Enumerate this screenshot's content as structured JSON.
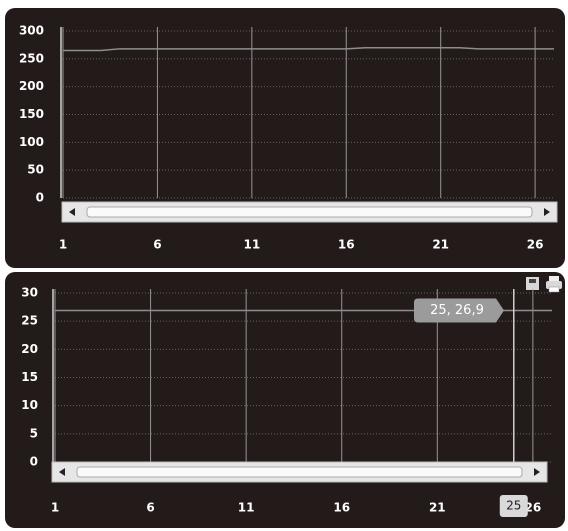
{
  "chart_data": [
    {
      "type": "line",
      "color": "#8e8e8e",
      "x": [
        1,
        2,
        3,
        4,
        5,
        6,
        7,
        8,
        9,
        10,
        11,
        12,
        13,
        14,
        15,
        16,
        17,
        18,
        19,
        20,
        21,
        22,
        23,
        24,
        25,
        26,
        27
      ],
      "values": [
        265,
        265,
        265,
        268,
        268,
        268,
        268,
        268,
        268,
        268,
        268,
        268,
        268,
        268,
        268,
        268,
        270,
        270,
        270,
        270,
        270,
        270,
        268,
        268,
        268,
        268,
        268
      ],
      "xlim": [
        1,
        27
      ],
      "xticks": [
        1,
        6,
        11,
        16,
        21,
        26
      ],
      "ylim": [
        0,
        300
      ],
      "yticks": [
        0,
        50,
        100,
        150,
        200,
        250,
        300
      ],
      "grid": true
    },
    {
      "type": "line",
      "color": "#8e8e8e",
      "x": [
        1,
        2,
        3,
        4,
        5,
        6,
        7,
        8,
        9,
        10,
        11,
        12,
        13,
        14,
        15,
        16,
        17,
        18,
        19,
        20,
        21,
        22,
        23,
        24,
        25,
        26,
        27
      ],
      "values": [
        26.9,
        26.9,
        26.9,
        26.9,
        26.9,
        26.9,
        26.9,
        26.9,
        26.9,
        26.9,
        26.9,
        26.9,
        26.9,
        26.9,
        26.9,
        26.9,
        26.9,
        26.9,
        26.9,
        26.9,
        26.9,
        26.9,
        26.9,
        26.9,
        26.9,
        26.9,
        26.9
      ],
      "xlim": [
        1,
        27
      ],
      "xticks": [
        1,
        6,
        11,
        16,
        21,
        26
      ],
      "ylim": [
        0,
        30
      ],
      "yticks": [
        0,
        5,
        10,
        15,
        20,
        25,
        30
      ],
      "grid": true,
      "crosshair_x": 25,
      "tooltip": "25, 26,9"
    }
  ]
}
